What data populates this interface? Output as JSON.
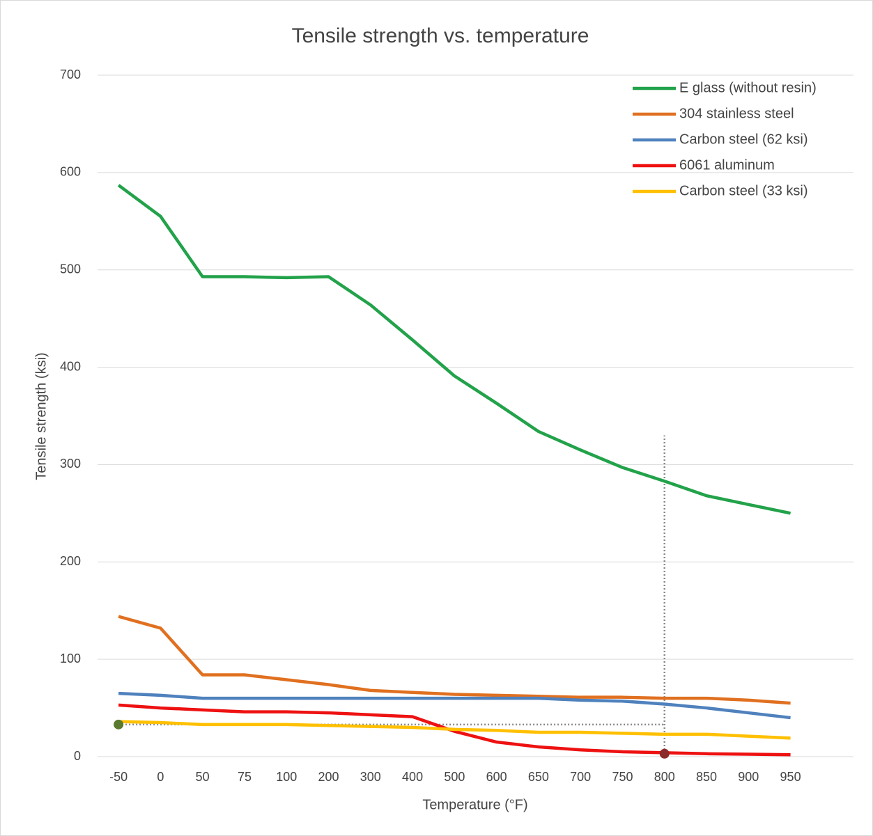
{
  "chart_data": {
    "type": "line",
    "title": "Tensile strength vs. temperature",
    "x_label": "Temperature (°F)",
    "y_label": "Tensile strength (ksi)",
    "categories": [
      "-50",
      "0",
      "50",
      "75",
      "100",
      "200",
      "300",
      "400",
      "500",
      "600",
      "650",
      "700",
      "750",
      "800",
      "850",
      "900",
      "950"
    ],
    "series": [
      {
        "name": "E glass (without resin)",
        "color": "#22a24a",
        "values": [
          587,
          555,
          493,
          493,
          492,
          493,
          464,
          428,
          391,
          363,
          334,
          315,
          297,
          283,
          268,
          259,
          250
        ]
      },
      {
        "name": "304 stainless steel",
        "color": "#e07020",
        "values": [
          144,
          132,
          84,
          84,
          79,
          74,
          68,
          66,
          64,
          63,
          62,
          61,
          61,
          60,
          60,
          58,
          55
        ]
      },
      {
        "name": "Carbon steel (62 ksi)",
        "color": "#4f81bd",
        "values": [
          65,
          63,
          60,
          60,
          60,
          60,
          60,
          60,
          60,
          60,
          60,
          58,
          57,
          54,
          50,
          45,
          40
        ]
      },
      {
        "name": "6061 aluminum",
        "color": "#ee1111",
        "values": [
          53,
          50,
          48,
          46,
          46,
          45,
          43,
          41,
          26,
          15,
          10,
          7,
          5,
          4,
          3,
          2.5,
          2
        ]
      },
      {
        "name": "Carbon steel (33 ksi)",
        "color": "#ffc000",
        "values": [
          36,
          35,
          33,
          33,
          33,
          32,
          31,
          30,
          28,
          27,
          25,
          25,
          24,
          23,
          23,
          21,
          19
        ]
      }
    ],
    "ylim": [
      0,
      700
    ],
    "yticks": [
      0,
      100,
      200,
      300,
      400,
      500,
      600,
      700
    ],
    "grid": true,
    "legend": "top-right",
    "guide_lines": [
      {
        "x": "800",
        "y": [
          0,
          330
        ]
      },
      {
        "y": 33,
        "x": [
          "-50",
          "800"
        ]
      }
    ],
    "highlights": [
      {
        "x": "-50",
        "y": 33,
        "color": "#5a7a2e"
      },
      {
        "x": "800",
        "y": 3,
        "color": "#8b2a2a"
      }
    ]
  }
}
